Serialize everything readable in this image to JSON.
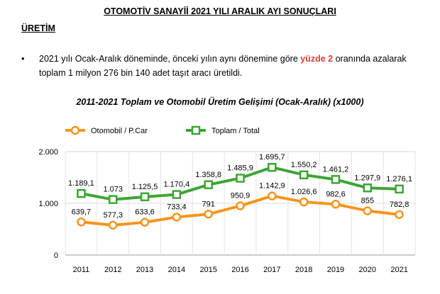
{
  "document": {
    "title": "OTOMOTİV SANAYİİ 2021 YILI ARALIK AYI SONUÇLARI",
    "section_heading": "ÜRETİM",
    "bullet": {
      "symbol": "•",
      "text_before": "2021 yılı Ocak-Aralık döneminde, önceki yılın aynı dönemine göre ",
      "highlight": "yüzde 2",
      "text_after": " oranında azalarak toplam 1 milyon 276 bin 140 adet taşıt aracı üretildi."
    },
    "chart_title": "2011-2021 Toplam ve Otomobil Üretim Gelişimi (Ocak-Aralık) (x1000)"
  },
  "chart_data": {
    "type": "line",
    "x": [
      "2011",
      "2012",
      "2013",
      "2014",
      "2015",
      "2016",
      "2017",
      "2018",
      "2019",
      "2020",
      "2021"
    ],
    "ylim": [
      0,
      2000
    ],
    "yticks": [
      0,
      1000,
      2000
    ],
    "ytick_labels": [
      "0",
      "1.000",
      "2.000"
    ],
    "grid": true,
    "legend_position": "top-left",
    "series": [
      {
        "name": "Otomobil / P.Car",
        "color": "#f7941d",
        "marker": "circle",
        "values": [
          639.7,
          577.3,
          633.6,
          733.4,
          791,
          950.9,
          1142.9,
          1026.6,
          982.6,
          855,
          782.8
        ],
        "labels": [
          "639,7",
          "577,3",
          "633,6",
          "733,4",
          "791",
          "950,9",
          "1.142,9",
          "1.026,6",
          "982,6",
          "855",
          "782,8"
        ]
      },
      {
        "name": "Toplam / Total",
        "color": "#3da535",
        "marker": "square",
        "values": [
          1189.1,
          1073,
          1125.5,
          1170.4,
          1358.8,
          1485.9,
          1695.7,
          1550.2,
          1461.2,
          1297.9,
          1276.1
        ],
        "labels": [
          "1.189,1",
          "1.073",
          "1.125,5",
          "1.170,4",
          "1.358,8",
          "1.485,9",
          "1.695,7",
          "1.550,2",
          "1.461,2",
          "1.297,9",
          "1.276,1"
        ]
      }
    ]
  }
}
